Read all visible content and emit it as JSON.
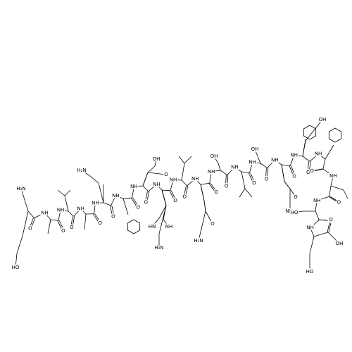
{
  "n_terminus": "H₂N",
  "amide": [
    "NH",
    "NH",
    "NH",
    "NH",
    "NH",
    "NH",
    "NH",
    "NH",
    "NH",
    "NH",
    "NH",
    "NH",
    "NH",
    "NH",
    "NH",
    "NH",
    "NH",
    "NH"
  ],
  "carbonyl": [
    "O",
    "O",
    "O",
    "O",
    "O",
    "O",
    "O",
    "O",
    "O",
    "O",
    "O",
    "O",
    "O",
    "O",
    "O",
    "O",
    "O",
    "O"
  ],
  "side_chain_labels": [
    "HO",
    "H₂N",
    "OH",
    "O",
    "HN",
    "NH",
    "H₂N",
    "O",
    "H₂N",
    "OH",
    "OH",
    "O",
    "NH₂",
    "OH",
    "HO",
    "HO"
  ],
  "c_terminus": [
    "O",
    "OH"
  ]
}
